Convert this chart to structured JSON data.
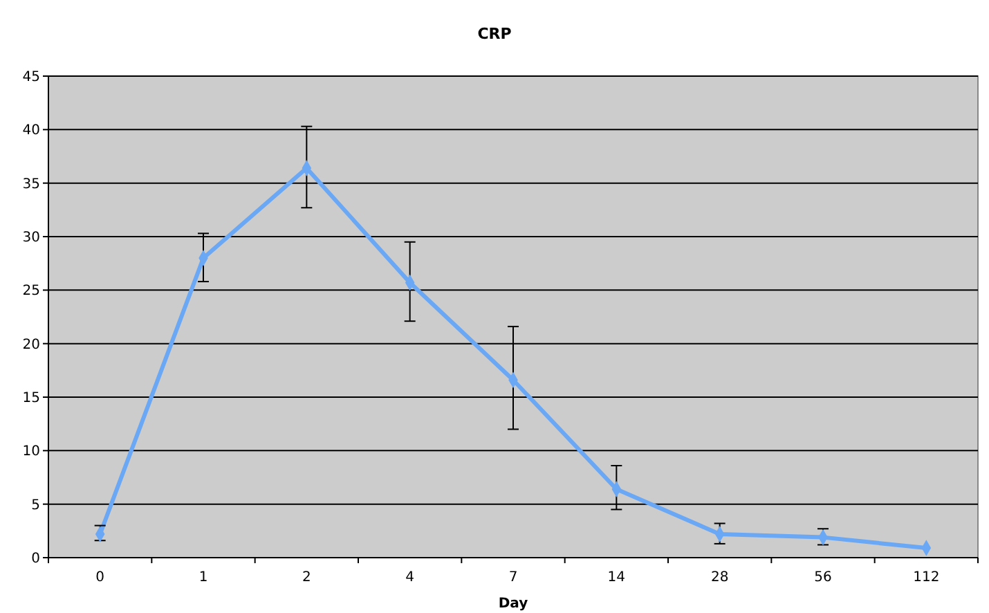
{
  "chart_data": {
    "type": "line",
    "title": "CRP",
    "xlabel": "Day",
    "categories": [
      "0",
      "1",
      "2",
      "4",
      "7",
      "14",
      "28",
      "56",
      "112"
    ],
    "series": [
      {
        "color": "#6aa8f5",
        "values": [
          2.2,
          28,
          36.4,
          25.7,
          16.6,
          6.4,
          2.2,
          1.9,
          0.9
        ],
        "errors": [
          [
            1.6,
            3.0
          ],
          [
            25.8,
            30.3
          ],
          [
            32.7,
            40.3
          ],
          [
            22.1,
            29.5
          ],
          [
            12.0,
            21.6
          ],
          [
            4.5,
            8.6
          ],
          [
            1.3,
            3.2
          ],
          [
            1.2,
            2.7
          ],
          null
        ]
      }
    ],
    "ylim": [
      0,
      45
    ],
    "yticks": [
      0,
      5,
      10,
      15,
      20,
      25,
      30,
      35,
      40,
      45
    ],
    "grid": "y",
    "marker": "diamond"
  }
}
